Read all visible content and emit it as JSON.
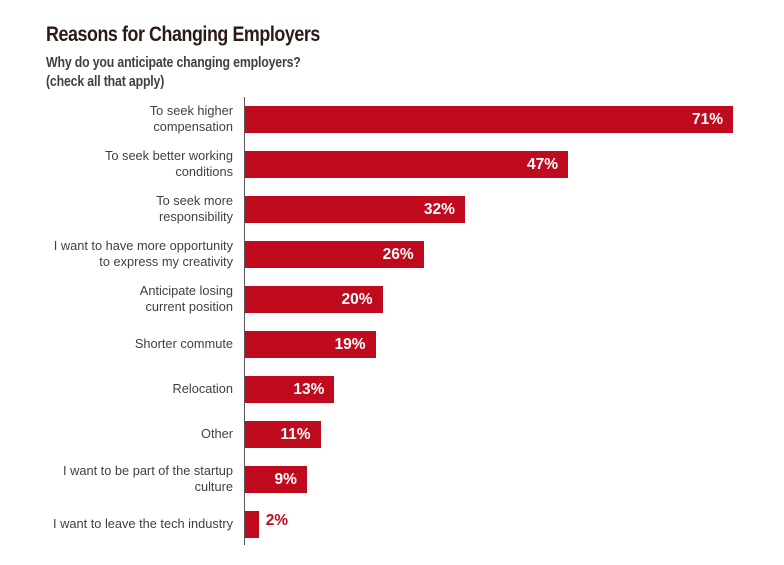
{
  "page": {
    "background": "#ffffff"
  },
  "header": {
    "title": "Reasons for Changing Employers",
    "subtitle_line1": "Why do you anticipate changing employers?",
    "subtitle_line2": "(check all that apply)"
  },
  "colors": {
    "bar": "#c00a1e",
    "title_text": "#2b1a16",
    "body_text": "#403f45",
    "axis": "#57565c",
    "value_label_inside": "#ffffff",
    "value_label_outside": "#c00a1e"
  },
  "chart_data": {
    "type": "bar",
    "orientation": "horizontal",
    "title": "Reasons for Changing Employers",
    "xlabel": "",
    "ylabel": "",
    "xlim": [
      0,
      78
    ],
    "grid": false,
    "legend": false,
    "categories": [
      "To seek higher compensation",
      "To seek better working conditions",
      "To seek more responsibility",
      "I want to have more opportunity to express my creativity",
      "Anticipate losing current position",
      "Shorter commute",
      "Relocation",
      "Other",
      "I want to be part of the startup culture",
      "I want to leave the tech industry"
    ],
    "category_label_lines": [
      [
        "To seek higher",
        "compensation"
      ],
      [
        "To seek better working",
        "conditions"
      ],
      [
        "To seek more",
        "responsibility"
      ],
      [
        "I want to have more opportunity",
        "to express my creativity"
      ],
      [
        "Anticipate losing",
        "current position"
      ],
      [
        "Shorter commute"
      ],
      [
        "Relocation"
      ],
      [
        "Other"
      ],
      [
        "I want to be part of the startup",
        "culture"
      ],
      [
        "I want to leave the tech industry"
      ]
    ],
    "values": [
      71,
      47,
      32,
      26,
      20,
      19,
      13,
      11,
      9,
      2
    ],
    "value_labels": [
      "71%",
      "47%",
      "32%",
      "26%",
      "20%",
      "19%",
      "13%",
      "11%",
      "9%",
      "2%"
    ],
    "value_label_position": [
      "inside",
      "inside",
      "inside",
      "inside",
      "inside",
      "inside",
      "inside",
      "inside",
      "inside",
      "outside"
    ]
  }
}
